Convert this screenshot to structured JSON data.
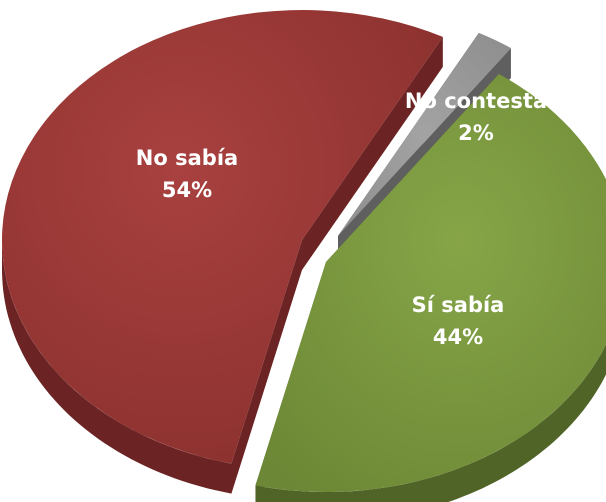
{
  "chart_data": {
    "type": "pie",
    "style": "3d-exploded",
    "slices": [
      {
        "label": "No sabía",
        "value": 54,
        "display": "54%",
        "color": "#953735",
        "side_color": "#6b2423"
      },
      {
        "label": "No contesta",
        "value": 2,
        "display": "2%",
        "color": "#8c8c8c",
        "side_color": "#5f5f5f"
      },
      {
        "label": "Sí sabía",
        "value": 44,
        "display": "44%",
        "color": "#77933c",
        "side_color": "#4f6426"
      }
    ],
    "legend": "none"
  }
}
